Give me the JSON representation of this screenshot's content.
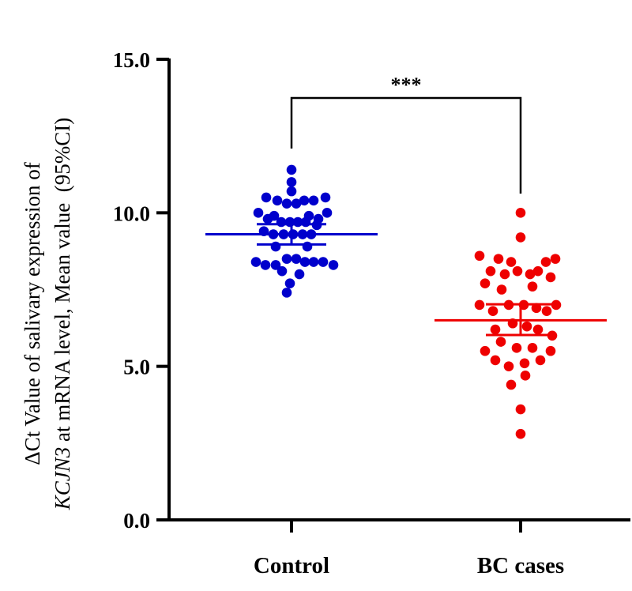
{
  "chart_data": {
    "type": "scatter",
    "subtype": "dot-plot-mean-95ci",
    "ylabel_line1": "ΔCt Value of salivary expression of",
    "ylabel_line2_italic": "KCJN3",
    "ylabel_line2_rest": " at mRNA level, Mean value  (95%CI)",
    "ylim": [
      0,
      15
    ],
    "yticks": [
      0,
      5,
      10,
      15
    ],
    "ytick_labels": [
      "0.0",
      "5.0",
      "10.0",
      "15.0"
    ],
    "categories": [
      "Control",
      "BC cases"
    ],
    "significance": "***",
    "series": [
      {
        "category": "Control",
        "color": "#0000cc",
        "mean": 9.3,
        "ci": [
          8.97,
          9.63
        ],
        "points": [
          {
            "x": 0.0,
            "y": 11.4
          },
          {
            "x": 0.0,
            "y": 11.0
          },
          {
            "x": 0.0,
            "y": 10.7
          },
          {
            "x": -0.32,
            "y": 10.5
          },
          {
            "x": -0.18,
            "y": 10.4
          },
          {
            "x": -0.06,
            "y": 10.3
          },
          {
            "x": 0.06,
            "y": 10.3
          },
          {
            "x": 0.16,
            "y": 10.4
          },
          {
            "x": 0.28,
            "y": 10.4
          },
          {
            "x": 0.43,
            "y": 10.5
          },
          {
            "x": -0.42,
            "y": 10.0
          },
          {
            "x": -0.22,
            "y": 9.9
          },
          {
            "x": 0.22,
            "y": 9.9
          },
          {
            "x": 0.34,
            "y": 9.8
          },
          {
            "x": 0.45,
            "y": 10.0
          },
          {
            "x": -0.3,
            "y": 9.8
          },
          {
            "x": -0.13,
            "y": 9.7
          },
          {
            "x": -0.02,
            "y": 9.7
          },
          {
            "x": 0.08,
            "y": 9.7
          },
          {
            "x": 0.18,
            "y": 9.7
          },
          {
            "x": 0.32,
            "y": 9.6
          },
          {
            "x": -0.35,
            "y": 9.4
          },
          {
            "x": -0.23,
            "y": 9.3
          },
          {
            "x": -0.1,
            "y": 9.3
          },
          {
            "x": 0.02,
            "y": 9.3
          },
          {
            "x": 0.14,
            "y": 9.3
          },
          {
            "x": 0.25,
            "y": 9.3
          },
          {
            "x": -0.2,
            "y": 8.9
          },
          {
            "x": 0.2,
            "y": 8.9
          },
          {
            "x": -0.45,
            "y": 8.4
          },
          {
            "x": -0.33,
            "y": 8.3
          },
          {
            "x": -0.2,
            "y": 8.3
          },
          {
            "x": -0.06,
            "y": 8.5
          },
          {
            "x": 0.06,
            "y": 8.5
          },
          {
            "x": 0.17,
            "y": 8.4
          },
          {
            "x": 0.28,
            "y": 8.4
          },
          {
            "x": 0.4,
            "y": 8.4
          },
          {
            "x": 0.53,
            "y": 8.3
          },
          {
            "x": -0.12,
            "y": 8.1
          },
          {
            "x": 0.1,
            "y": 8.0
          },
          {
            "x": -0.02,
            "y": 7.7
          },
          {
            "x": -0.06,
            "y": 7.4
          }
        ]
      },
      {
        "category": "BC cases",
        "color": "#ee0000",
        "mean": 6.5,
        "ci": [
          6.02,
          7.02
        ],
        "points": [
          {
            "x": 0.0,
            "y": 10.0
          },
          {
            "x": 0.0,
            "y": 9.2
          },
          {
            "x": -0.52,
            "y": 8.6
          },
          {
            "x": -0.28,
            "y": 8.5
          },
          {
            "x": -0.12,
            "y": 8.4
          },
          {
            "x": 0.32,
            "y": 8.4
          },
          {
            "x": 0.44,
            "y": 8.5
          },
          {
            "x": -0.38,
            "y": 8.1
          },
          {
            "x": -0.2,
            "y": 8.0
          },
          {
            "x": -0.04,
            "y": 8.1
          },
          {
            "x": 0.12,
            "y": 8.0
          },
          {
            "x": 0.22,
            "y": 8.1
          },
          {
            "x": 0.38,
            "y": 7.9
          },
          {
            "x": -0.45,
            "y": 7.7
          },
          {
            "x": -0.24,
            "y": 7.5
          },
          {
            "x": 0.15,
            "y": 7.6
          },
          {
            "x": -0.15,
            "y": 7.0
          },
          {
            "x": 0.04,
            "y": 7.0
          },
          {
            "x": -0.52,
            "y": 7.0
          },
          {
            "x": -0.35,
            "y": 6.8
          },
          {
            "x": 0.2,
            "y": 6.9
          },
          {
            "x": 0.33,
            "y": 6.8
          },
          {
            "x": 0.45,
            "y": 7.0
          },
          {
            "x": -0.32,
            "y": 6.2
          },
          {
            "x": -0.1,
            "y": 6.4
          },
          {
            "x": 0.08,
            "y": 6.3
          },
          {
            "x": 0.22,
            "y": 6.2
          },
          {
            "x": 0.4,
            "y": 6.0
          },
          {
            "x": -0.45,
            "y": 5.5
          },
          {
            "x": -0.25,
            "y": 5.8
          },
          {
            "x": -0.05,
            "y": 5.6
          },
          {
            "x": 0.15,
            "y": 5.6
          },
          {
            "x": 0.38,
            "y": 5.5
          },
          {
            "x": -0.32,
            "y": 5.2
          },
          {
            "x": -0.15,
            "y": 5.0
          },
          {
            "x": 0.05,
            "y": 5.1
          },
          {
            "x": 0.25,
            "y": 5.2
          },
          {
            "x": 0.06,
            "y": 4.7
          },
          {
            "x": -0.12,
            "y": 4.4
          },
          {
            "x": 0.0,
            "y": 3.6
          },
          {
            "x": 0.0,
            "y": 2.8
          }
        ]
      }
    ]
  }
}
